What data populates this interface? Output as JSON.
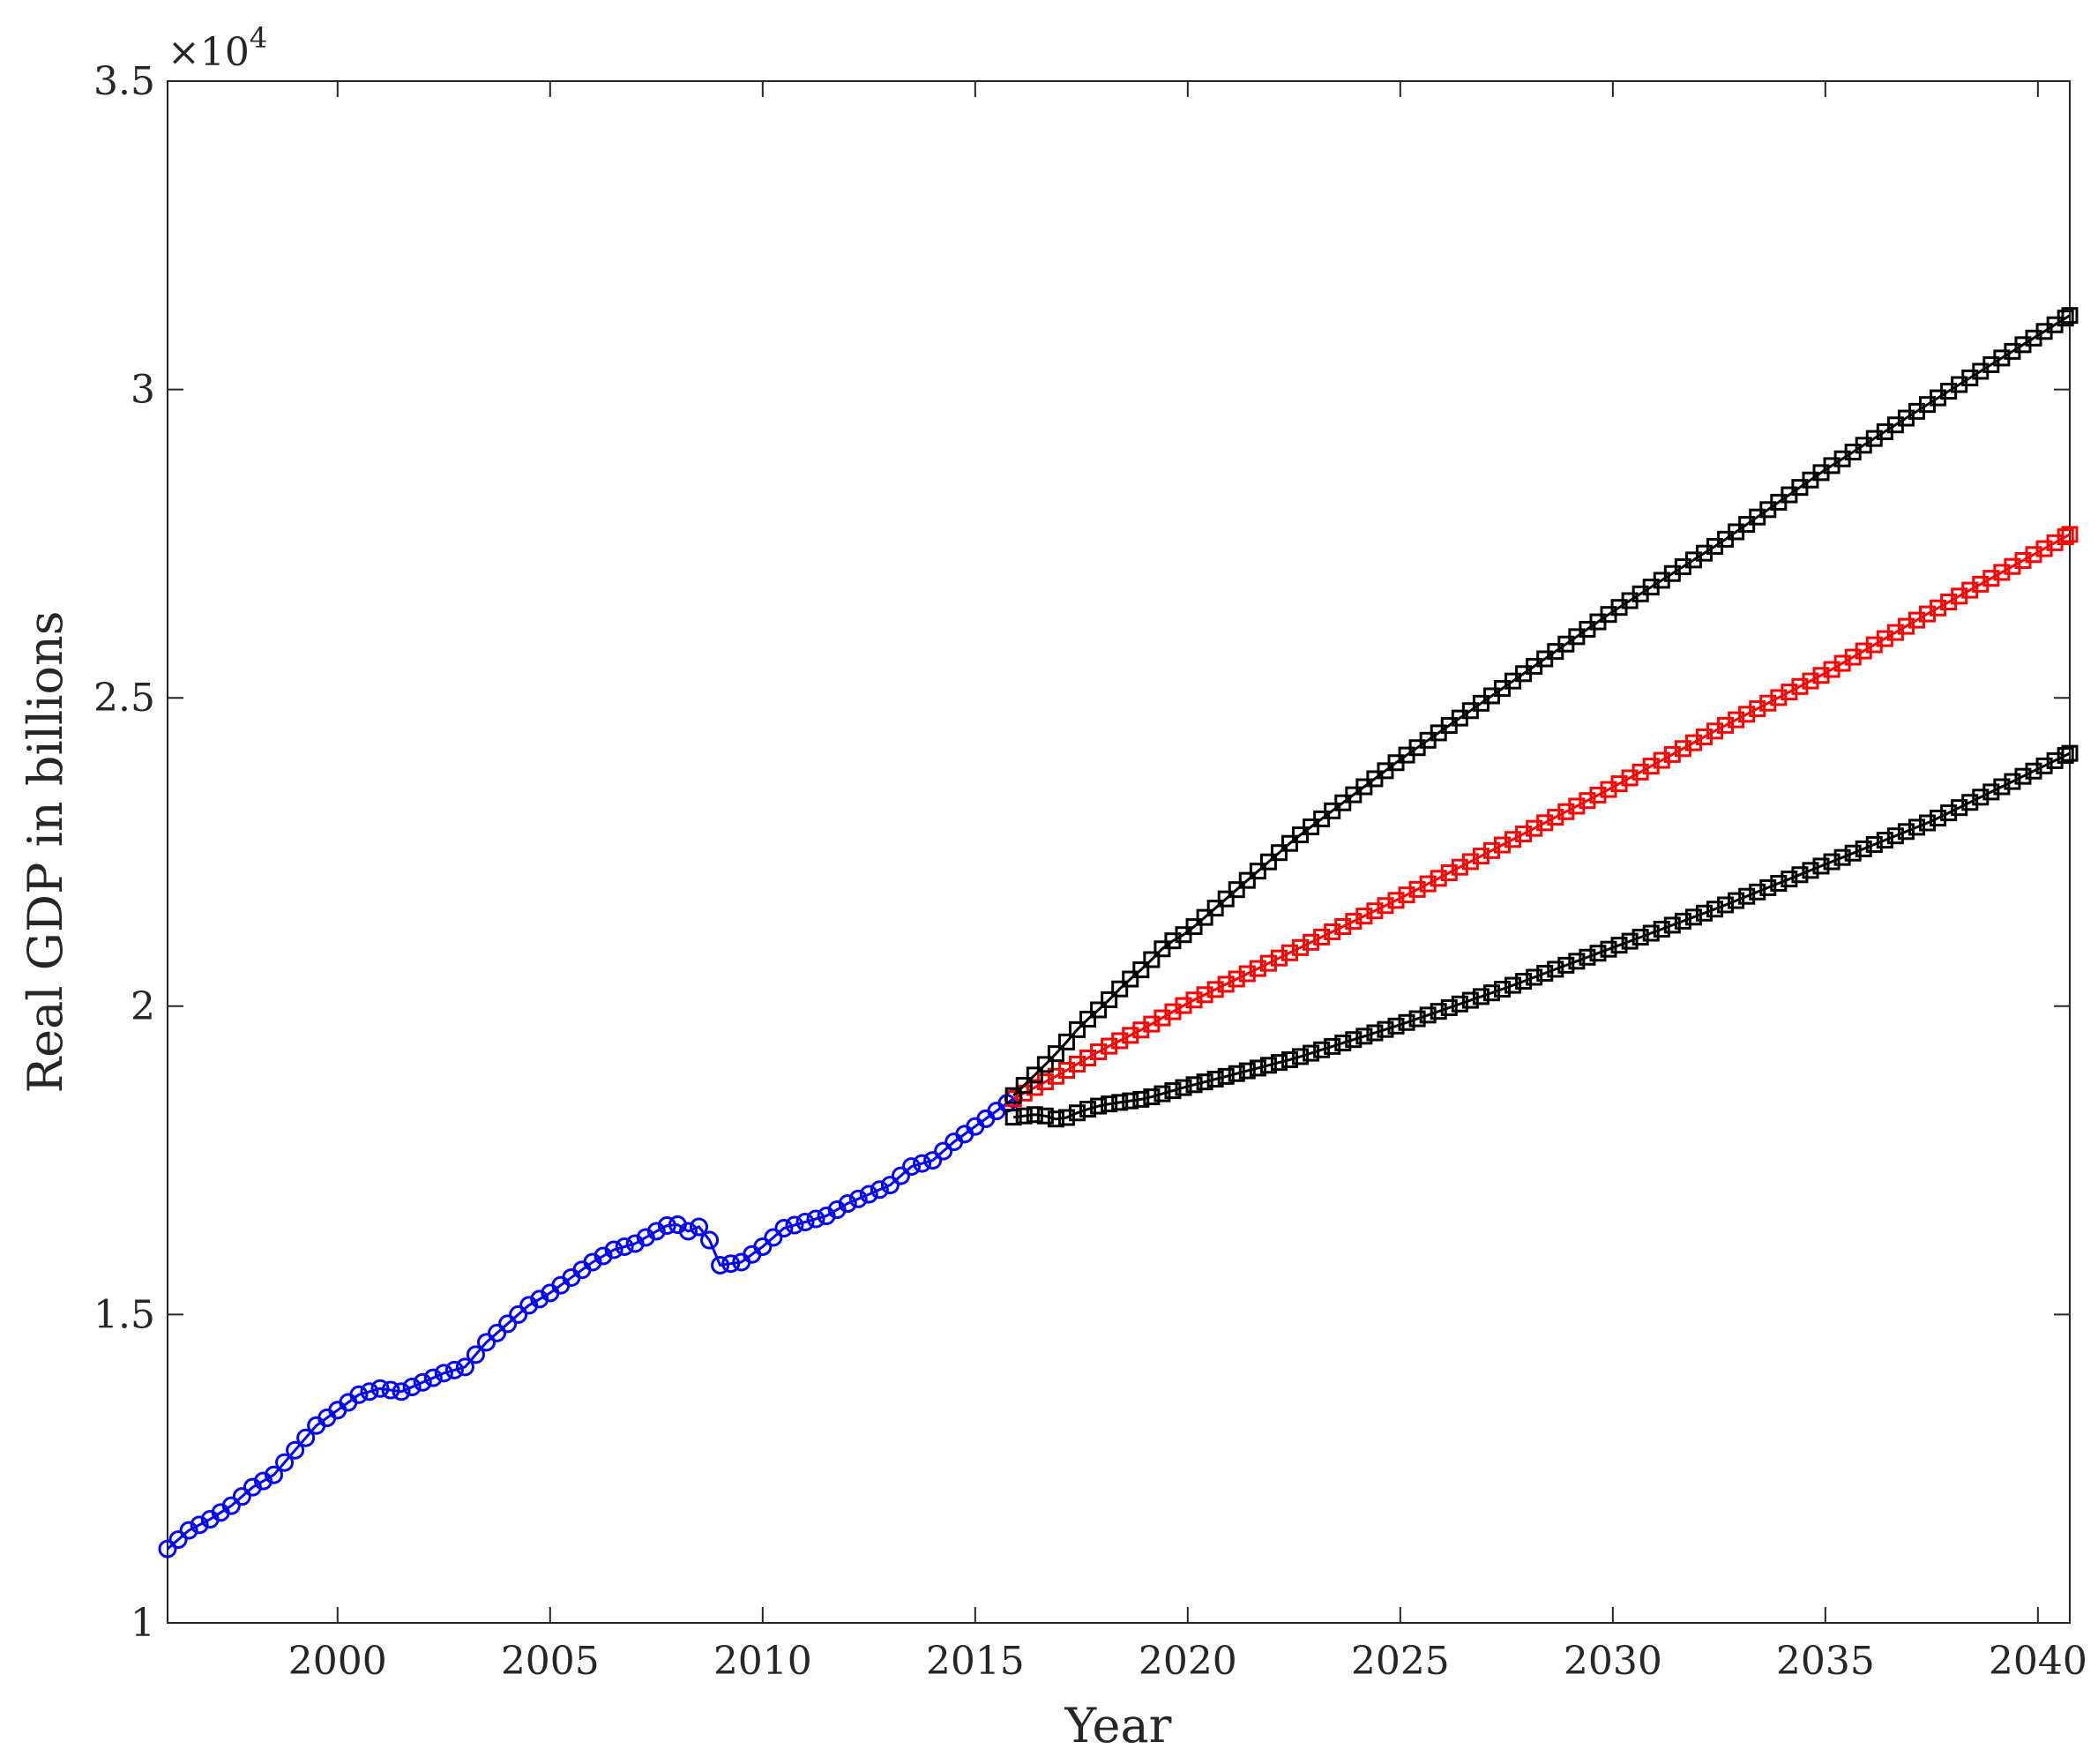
{
  "chart_data": {
    "type": "line",
    "title": "",
    "xlabel": "Year",
    "ylabel": "Real GDP in billions",
    "y_exponent_prefix": "×10",
    "y_exponent_power": "4",
    "xlim": [
      1996,
      2040.75
    ],
    "ylim": [
      10000,
      35000
    ],
    "xticks": [
      "2000",
      "2005",
      "2010",
      "2015",
      "2020",
      "2025",
      "2030",
      "2035",
      "2040"
    ],
    "yticks": [
      "1",
      "1.5",
      "2",
      "2.5",
      "3",
      "3.5"
    ],
    "grid": false,
    "marker_step_years": 0.25,
    "series": [
      {
        "color": "#0000ff",
        "marker": "circle",
        "points": [
          [
            1996.0,
            11200
          ],
          [
            1996.5,
            11500
          ],
          [
            1997.0,
            11680
          ],
          [
            1997.5,
            11900
          ],
          [
            1998.0,
            12200
          ],
          [
            1998.5,
            12400
          ],
          [
            1999.0,
            12800
          ],
          [
            1999.5,
            13200
          ],
          [
            2000.0,
            13450
          ],
          [
            2000.5,
            13700
          ],
          [
            2001.0,
            13800
          ],
          [
            2001.5,
            13750
          ],
          [
            2002.0,
            13900
          ],
          [
            2002.5,
            14050
          ],
          [
            2003.0,
            14150
          ],
          [
            2003.5,
            14550
          ],
          [
            2004.0,
            14850
          ],
          [
            2004.5,
            15150
          ],
          [
            2005.0,
            15350
          ],
          [
            2005.5,
            15600
          ],
          [
            2006.0,
            15850
          ],
          [
            2006.5,
            16050
          ],
          [
            2007.0,
            16150
          ],
          [
            2007.5,
            16350
          ],
          [
            2007.9,
            16500
          ],
          [
            2008.25,
            16350
          ],
          [
            2008.6,
            16450
          ],
          [
            2009.0,
            15800
          ],
          [
            2009.5,
            15850
          ],
          [
            2010.0,
            16100
          ],
          [
            2010.5,
            16400
          ],
          [
            2011.0,
            16500
          ],
          [
            2011.5,
            16600
          ],
          [
            2012.0,
            16800
          ],
          [
            2012.5,
            16950
          ],
          [
            2013.0,
            17100
          ],
          [
            2013.5,
            17400
          ],
          [
            2014.0,
            17500
          ],
          [
            2014.5,
            17800
          ],
          [
            2015.0,
            18050
          ],
          [
            2015.5,
            18300
          ],
          [
            2015.9,
            18500
          ]
        ]
      },
      {
        "color": "#ff0000",
        "marker": "square",
        "points": [
          [
            2015.9,
            18500
          ],
          [
            2017.0,
            18900
          ],
          [
            2018.0,
            19300
          ],
          [
            2019.0,
            19650
          ],
          [
            2020.0,
            20050
          ],
          [
            2022.5,
            20900
          ],
          [
            2025.0,
            21750
          ],
          [
            2027.5,
            22650
          ],
          [
            2030.0,
            23550
          ],
          [
            2032.5,
            24500
          ],
          [
            2035.0,
            25400
          ],
          [
            2037.5,
            26400
          ],
          [
            2040.75,
            27650
          ]
        ]
      },
      {
        "color": "#000000",
        "marker": "square",
        "points": [
          [
            2015.9,
            18550
          ],
          [
            2016.5,
            18950
          ],
          [
            2017.0,
            19300
          ],
          [
            2017.5,
            19700
          ],
          [
            2018.0,
            20000
          ],
          [
            2018.5,
            20350
          ],
          [
            2019.0,
            20650
          ],
          [
            2019.5,
            21000
          ],
          [
            2020.0,
            21200
          ],
          [
            2022.5,
            22700
          ],
          [
            2025.0,
            24000
          ],
          [
            2027.5,
            25200
          ],
          [
            2030.0,
            26400
          ],
          [
            2032.5,
            27500
          ],
          [
            2035.0,
            28700
          ],
          [
            2037.5,
            29800
          ],
          [
            2040.75,
            31200
          ]
        ]
      },
      {
        "color": "#000000",
        "marker": "square",
        "points": [
          [
            2015.9,
            18200
          ],
          [
            2016.5,
            18250
          ],
          [
            2017.0,
            18150
          ],
          [
            2017.5,
            18300
          ],
          [
            2018.0,
            18400
          ],
          [
            2019.0,
            18500
          ],
          [
            2020.0,
            18700
          ],
          [
            2022.5,
            19150
          ],
          [
            2025.0,
            19700
          ],
          [
            2027.5,
            20300
          ],
          [
            2030.0,
            20950
          ],
          [
            2032.5,
            21600
          ],
          [
            2035.0,
            22300
          ],
          [
            2037.5,
            23000
          ],
          [
            2040.75,
            24100
          ]
        ]
      }
    ]
  }
}
